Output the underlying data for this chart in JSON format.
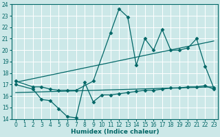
{
  "xlabel": "Humidex (Indice chaleur)",
  "xlim": [
    -0.5,
    23.5
  ],
  "ylim": [
    14,
    24
  ],
  "yticks": [
    14,
    15,
    16,
    17,
    18,
    19,
    20,
    21,
    22,
    23,
    24
  ],
  "xticks": [
    0,
    1,
    2,
    3,
    4,
    5,
    6,
    7,
    8,
    9,
    10,
    11,
    12,
    13,
    14,
    15,
    16,
    17,
    18,
    19,
    20,
    21,
    22,
    23
  ],
  "bg_color": "#cce8e8",
  "line_color": "#006666",
  "grid_color": "#b0d4d4",
  "series": [
    {
      "x": [
        0,
        2,
        3,
        4,
        5,
        6,
        7,
        9,
        11,
        12,
        13,
        14,
        15,
        16,
        17,
        18,
        19,
        20,
        21,
        22,
        23
      ],
      "y": [
        17.3,
        16.8,
        16.8,
        16.6,
        16.5,
        16.5,
        16.5,
        17.3,
        21.5,
        23.6,
        22.9,
        18.7,
        21.0,
        20.0,
        21.8,
        20.0,
        20.0,
        20.2,
        21.0,
        18.6,
        16.7
      ],
      "marker": "D",
      "markersize": 2.5,
      "linewidth": 0.9
    },
    {
      "x": [
        0,
        23
      ],
      "y": [
        17.2,
        20.8
      ],
      "marker": null,
      "markersize": 0,
      "linewidth": 0.9
    },
    {
      "x": [
        0,
        2,
        3,
        4,
        5,
        6,
        7,
        8,
        9,
        10,
        11,
        12,
        13,
        14,
        15,
        16,
        17,
        18,
        19,
        20,
        21,
        22,
        23
      ],
      "y": [
        17.0,
        16.6,
        15.7,
        15.6,
        14.9,
        14.2,
        14.1,
        17.2,
        15.5,
        16.1,
        16.1,
        16.2,
        16.3,
        16.4,
        16.5,
        16.5,
        16.6,
        16.7,
        16.7,
        16.8,
        16.8,
        16.9,
        16.6
      ],
      "marker": "D",
      "markersize": 2.5,
      "linewidth": 0.9
    },
    {
      "x": [
        0,
        23
      ],
      "y": [
        16.3,
        16.8
      ],
      "marker": null,
      "markersize": 0,
      "linewidth": 0.9
    }
  ]
}
